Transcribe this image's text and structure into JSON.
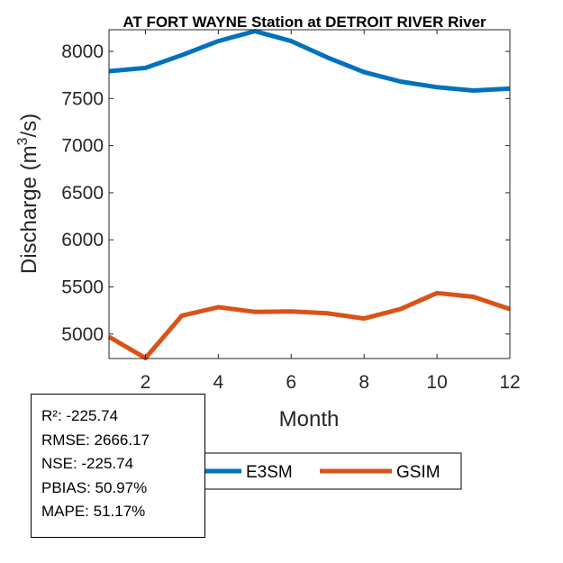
{
  "chart_data": {
    "type": "line",
    "title": "AT FORT WAYNE  Station at  DETROIT RIVER  River",
    "xlabel": "Month",
    "ylabel_main": "Discharge (m",
    "ylabel_sup": "3",
    "ylabel_tail": "/s)",
    "xlim": [
      1,
      12
    ],
    "ylim": [
      4740,
      8230
    ],
    "xticks": [
      2,
      4,
      6,
      8,
      10,
      12
    ],
    "yticks": [
      5000,
      5500,
      6000,
      6500,
      7000,
      7500,
      8000
    ],
    "x": [
      1,
      2,
      3,
      4,
      5,
      6,
      7,
      8,
      9,
      10,
      11,
      12
    ],
    "series": [
      {
        "name": "E3SM",
        "color": "#0072BD",
        "values": [
          7790,
          7825,
          7960,
          8110,
          8215,
          8110,
          7935,
          7780,
          7680,
          7620,
          7585,
          7605
        ]
      },
      {
        "name": "GSIM",
        "color": "#D95319",
        "values": [
          4970,
          4745,
          5195,
          5285,
          5235,
          5240,
          5220,
          5165,
          5265,
          5435,
          5395,
          5265
        ]
      }
    ],
    "legend_location": "below plot, right"
  },
  "stats": {
    "r2": "R²: -225.74",
    "rmse": "RMSE: 2666.17",
    "nse": "NSE: -225.74",
    "pbias": "PBIAS: 50.97%",
    "mape": "MAPE: 51.17%"
  }
}
